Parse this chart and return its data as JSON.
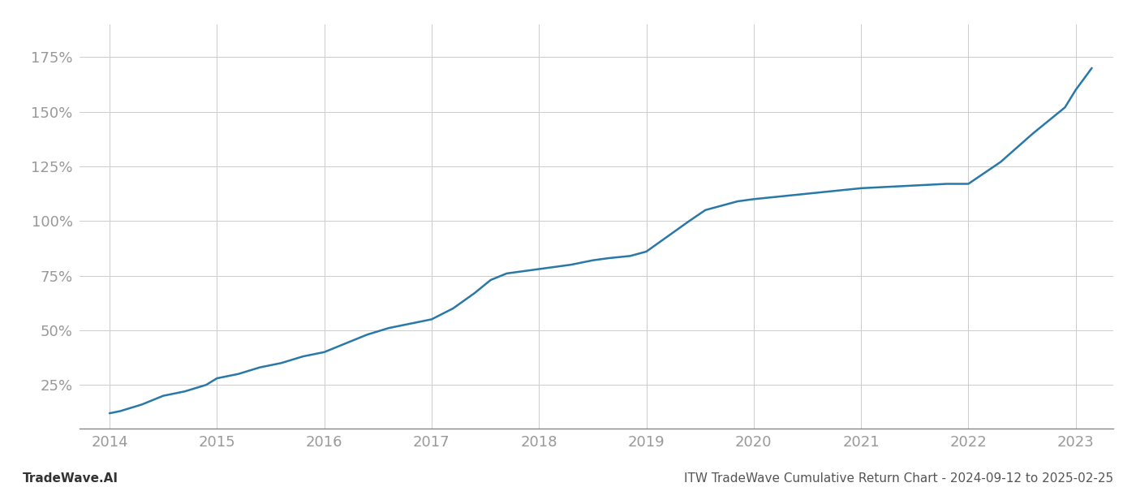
{
  "title_left": "TradeWave.AI",
  "title_right": "ITW TradeWave Cumulative Return Chart - 2024-09-12 to 2025-02-25",
  "line_color": "#2878a8",
  "background_color": "#ffffff",
  "grid_color": "#cccccc",
  "x_values": [
    2014.0,
    2014.1,
    2014.3,
    2014.5,
    2014.7,
    2014.9,
    2015.0,
    2015.2,
    2015.4,
    2015.6,
    2015.8,
    2016.0,
    2016.2,
    2016.4,
    2016.6,
    2016.8,
    2017.0,
    2017.2,
    2017.4,
    2017.55,
    2017.7,
    2017.85,
    2018.0,
    2018.15,
    2018.3,
    2018.5,
    2018.65,
    2018.85,
    2019.0,
    2019.2,
    2019.4,
    2019.55,
    2019.7,
    2019.85,
    2020.0,
    2020.2,
    2020.4,
    2020.6,
    2020.8,
    2021.0,
    2021.2,
    2021.4,
    2021.6,
    2021.8,
    2022.0,
    2022.3,
    2022.6,
    2022.9,
    2023.0,
    2023.15
  ],
  "y_values": [
    12,
    13,
    16,
    20,
    22,
    25,
    28,
    30,
    33,
    35,
    38,
    40,
    44,
    48,
    51,
    53,
    55,
    60,
    67,
    73,
    76,
    77,
    78,
    79,
    80,
    82,
    83,
    84,
    86,
    93,
    100,
    105,
    107,
    109,
    110,
    111,
    112,
    113,
    114,
    115,
    115.5,
    116,
    116.5,
    117,
    117,
    127,
    140,
    152,
    160,
    170
  ],
  "yticks": [
    25,
    50,
    75,
    100,
    125,
    150,
    175
  ],
  "xticks": [
    2014,
    2015,
    2016,
    2017,
    2018,
    2019,
    2020,
    2021,
    2022,
    2023
  ],
  "xlim": [
    2013.72,
    2023.35
  ],
  "ylim": [
    5,
    190
  ],
  "tick_color": "#999999",
  "axis_color": "#888888",
  "line_width": 1.8,
  "title_fontsize": 11,
  "tick_fontsize": 13
}
